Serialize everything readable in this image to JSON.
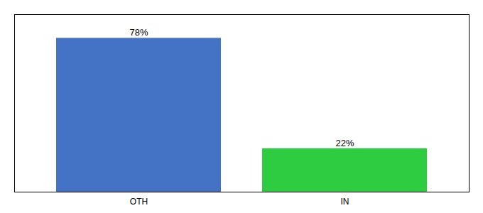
{
  "chart_data": {
    "type": "bar",
    "categories": [
      "OTH",
      "IN"
    ],
    "values": [
      78,
      22
    ],
    "value_labels": [
      "78%",
      "22%"
    ],
    "colors": [
      "#4472c4",
      "#2ecc40"
    ],
    "ylim": [
      0,
      90
    ],
    "data_labels": true,
    "tick_labels": "x",
    "grid": false
  }
}
